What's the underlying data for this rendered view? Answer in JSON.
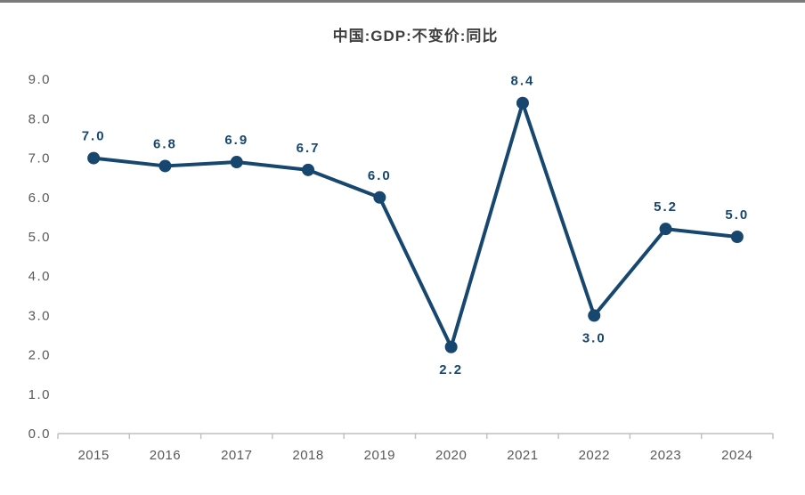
{
  "page": {
    "background": "#ffffff",
    "top_border_color": "#7a7a7a"
  },
  "colors": {
    "series": "#17466f",
    "title_text": "#3f3f3f",
    "axis_text": "#595959",
    "axis_line": "#bfbfbf"
  },
  "chart_data": {
    "type": "line",
    "title": "中国:GDP:不变价:同比",
    "categories": [
      "2015",
      "2016",
      "2017",
      "2018",
      "2019",
      "2020",
      "2021",
      "2022",
      "2023",
      "2024"
    ],
    "values": [
      7.0,
      6.8,
      6.9,
      6.7,
      6.0,
      2.2,
      8.4,
      3.0,
      5.2,
      5.0
    ],
    "data_labels": [
      "7.0",
      "6.8",
      "6.9",
      "6.7",
      "6.0",
      "2.2",
      "8.4",
      "3.0",
      "5.2",
      "5.0"
    ],
    "label_positions": [
      "above",
      "above",
      "above",
      "above",
      "above",
      "below",
      "above",
      "below",
      "above",
      "above"
    ],
    "y_ticks": [
      "9.0",
      "8.0",
      "7.0",
      "6.0",
      "5.0",
      "4.0",
      "3.0",
      "2.0",
      "1.0",
      "0.0"
    ],
    "ylim": [
      0,
      9
    ],
    "xlabel": "",
    "ylabel": "",
    "grid": false,
    "legend": "none",
    "marker": "circle"
  }
}
